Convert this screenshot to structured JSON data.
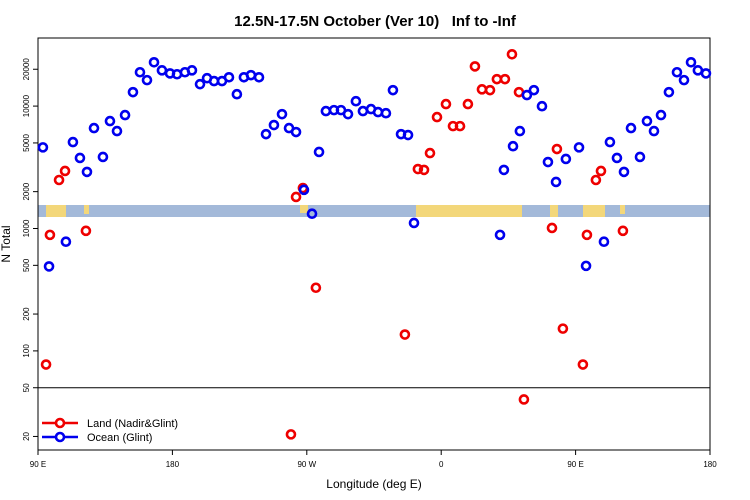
{
  "chart_data": {
    "type": "scatter",
    "title": "12.5N-17.5N October (Ver 10)   Inf to -Inf",
    "x_label": "Longitude (deg E)",
    "y_label": "N Total",
    "y_scale": "log",
    "legend_position": "bottom-left",
    "xlim": [
      90,
      540
    ],
    "ylim": [
      15.5,
      36000
    ],
    "xticks": [
      {
        "value": 90,
        "label": "90 E"
      },
      {
        "value": 180,
        "label": "180"
      },
      {
        "value": 270,
        "label": "90 W"
      },
      {
        "value": 360,
        "label": "0"
      },
      {
        "value": 450,
        "label": "90 E"
      },
      {
        "value": 540,
        "label": "180"
      }
    ],
    "yticks": [
      20,
      50,
      100,
      200,
      500,
      1000,
      2000,
      5000,
      10000,
      20000
    ],
    "reference_line": 50,
    "series": [
      {
        "name": "Land (Nadir&Glint)",
        "color": "#ee0000",
        "x": [
          95.4,
          98.0,
          104.1,
          108.1,
          122.1,
          259.4,
          262.8,
          267.4,
          276.1,
          335.7,
          344.4,
          348.5,
          352.5,
          357.2,
          363.2,
          367.9,
          372.6,
          377.9,
          382.6,
          387.3,
          392.7,
          397.3,
          402.7,
          407.4,
          412.1,
          415.4,
          434.2,
          437.5,
          441.5,
          454.9,
          457.6,
          463.6,
          467.0,
          481.7
        ],
        "values": [
          77.4,
          887,
          2490,
          2950,
          957,
          20.8,
          1810,
          2140,
          328,
          136,
          3060,
          3010,
          4130,
          8130,
          10380,
          6860,
          6860,
          10380,
          21100,
          13700,
          13500,
          16600,
          16600,
          26500,
          13000,
          40.1,
          1010,
          4460,
          152,
          77.4,
          887,
          2490,
          2950,
          957
        ]
      },
      {
        "name": "Ocean (Glint)",
        "color": "#0000ee",
        "x": [
          93.3,
          97.4,
          108.7,
          113.4,
          118.1,
          122.8,
          127.5,
          133.5,
          138.2,
          142.9,
          148.3,
          153.6,
          158.3,
          163.0,
          167.7,
          173.0,
          178.4,
          183.1,
          188.4,
          193.1,
          198.5,
          203.2,
          207.9,
          213.2,
          217.9,
          223.2,
          227.9,
          232.6,
          238.0,
          242.7,
          248.0,
          253.4,
          258.1,
          262.8,
          268.1,
          273.5,
          278.2,
          282.8,
          288.2,
          292.9,
          297.6,
          302.9,
          307.6,
          313.0,
          317.7,
          323.0,
          327.7,
          333.1,
          337.8,
          341.8,
          399.4,
          402.0,
          408.1,
          412.7,
          417.4,
          422.1,
          427.5,
          431.5,
          436.9,
          443.5,
          452.3,
          457.0,
          469.0,
          473.0,
          477.7,
          482.4,
          487.1,
          493.1,
          497.8,
          502.5,
          507.2,
          512.5,
          517.9,
          522.6,
          527.3,
          531.9,
          537.3
        ],
        "values": [
          4600,
          490,
          780,
          5080,
          3770,
          2900,
          6610,
          3840,
          7540,
          6250,
          8440,
          13000,
          18900,
          16300,
          22800,
          19600,
          18500,
          18200,
          18900,
          19600,
          15100,
          16900,
          16000,
          16000,
          17200,
          12500,
          17200,
          17900,
          17200,
          5900,
          7000,
          8590,
          6610,
          6140,
          2070,
          1320,
          4220,
          9100,
          9270,
          9270,
          8590,
          10960,
          9100,
          9450,
          8930,
          8750,
          13500,
          5900,
          5800,
          1110,
          887,
          3010,
          4700,
          6250,
          12300,
          13500,
          9980,
          3490,
          2400,
          3700,
          4600,
          495,
          780,
          5080,
          3770,
          2900,
          6610,
          3840,
          7540,
          6250,
          8440,
          13000,
          18900,
          16300,
          22800,
          19600,
          18500
        ]
      }
    ]
  }
}
